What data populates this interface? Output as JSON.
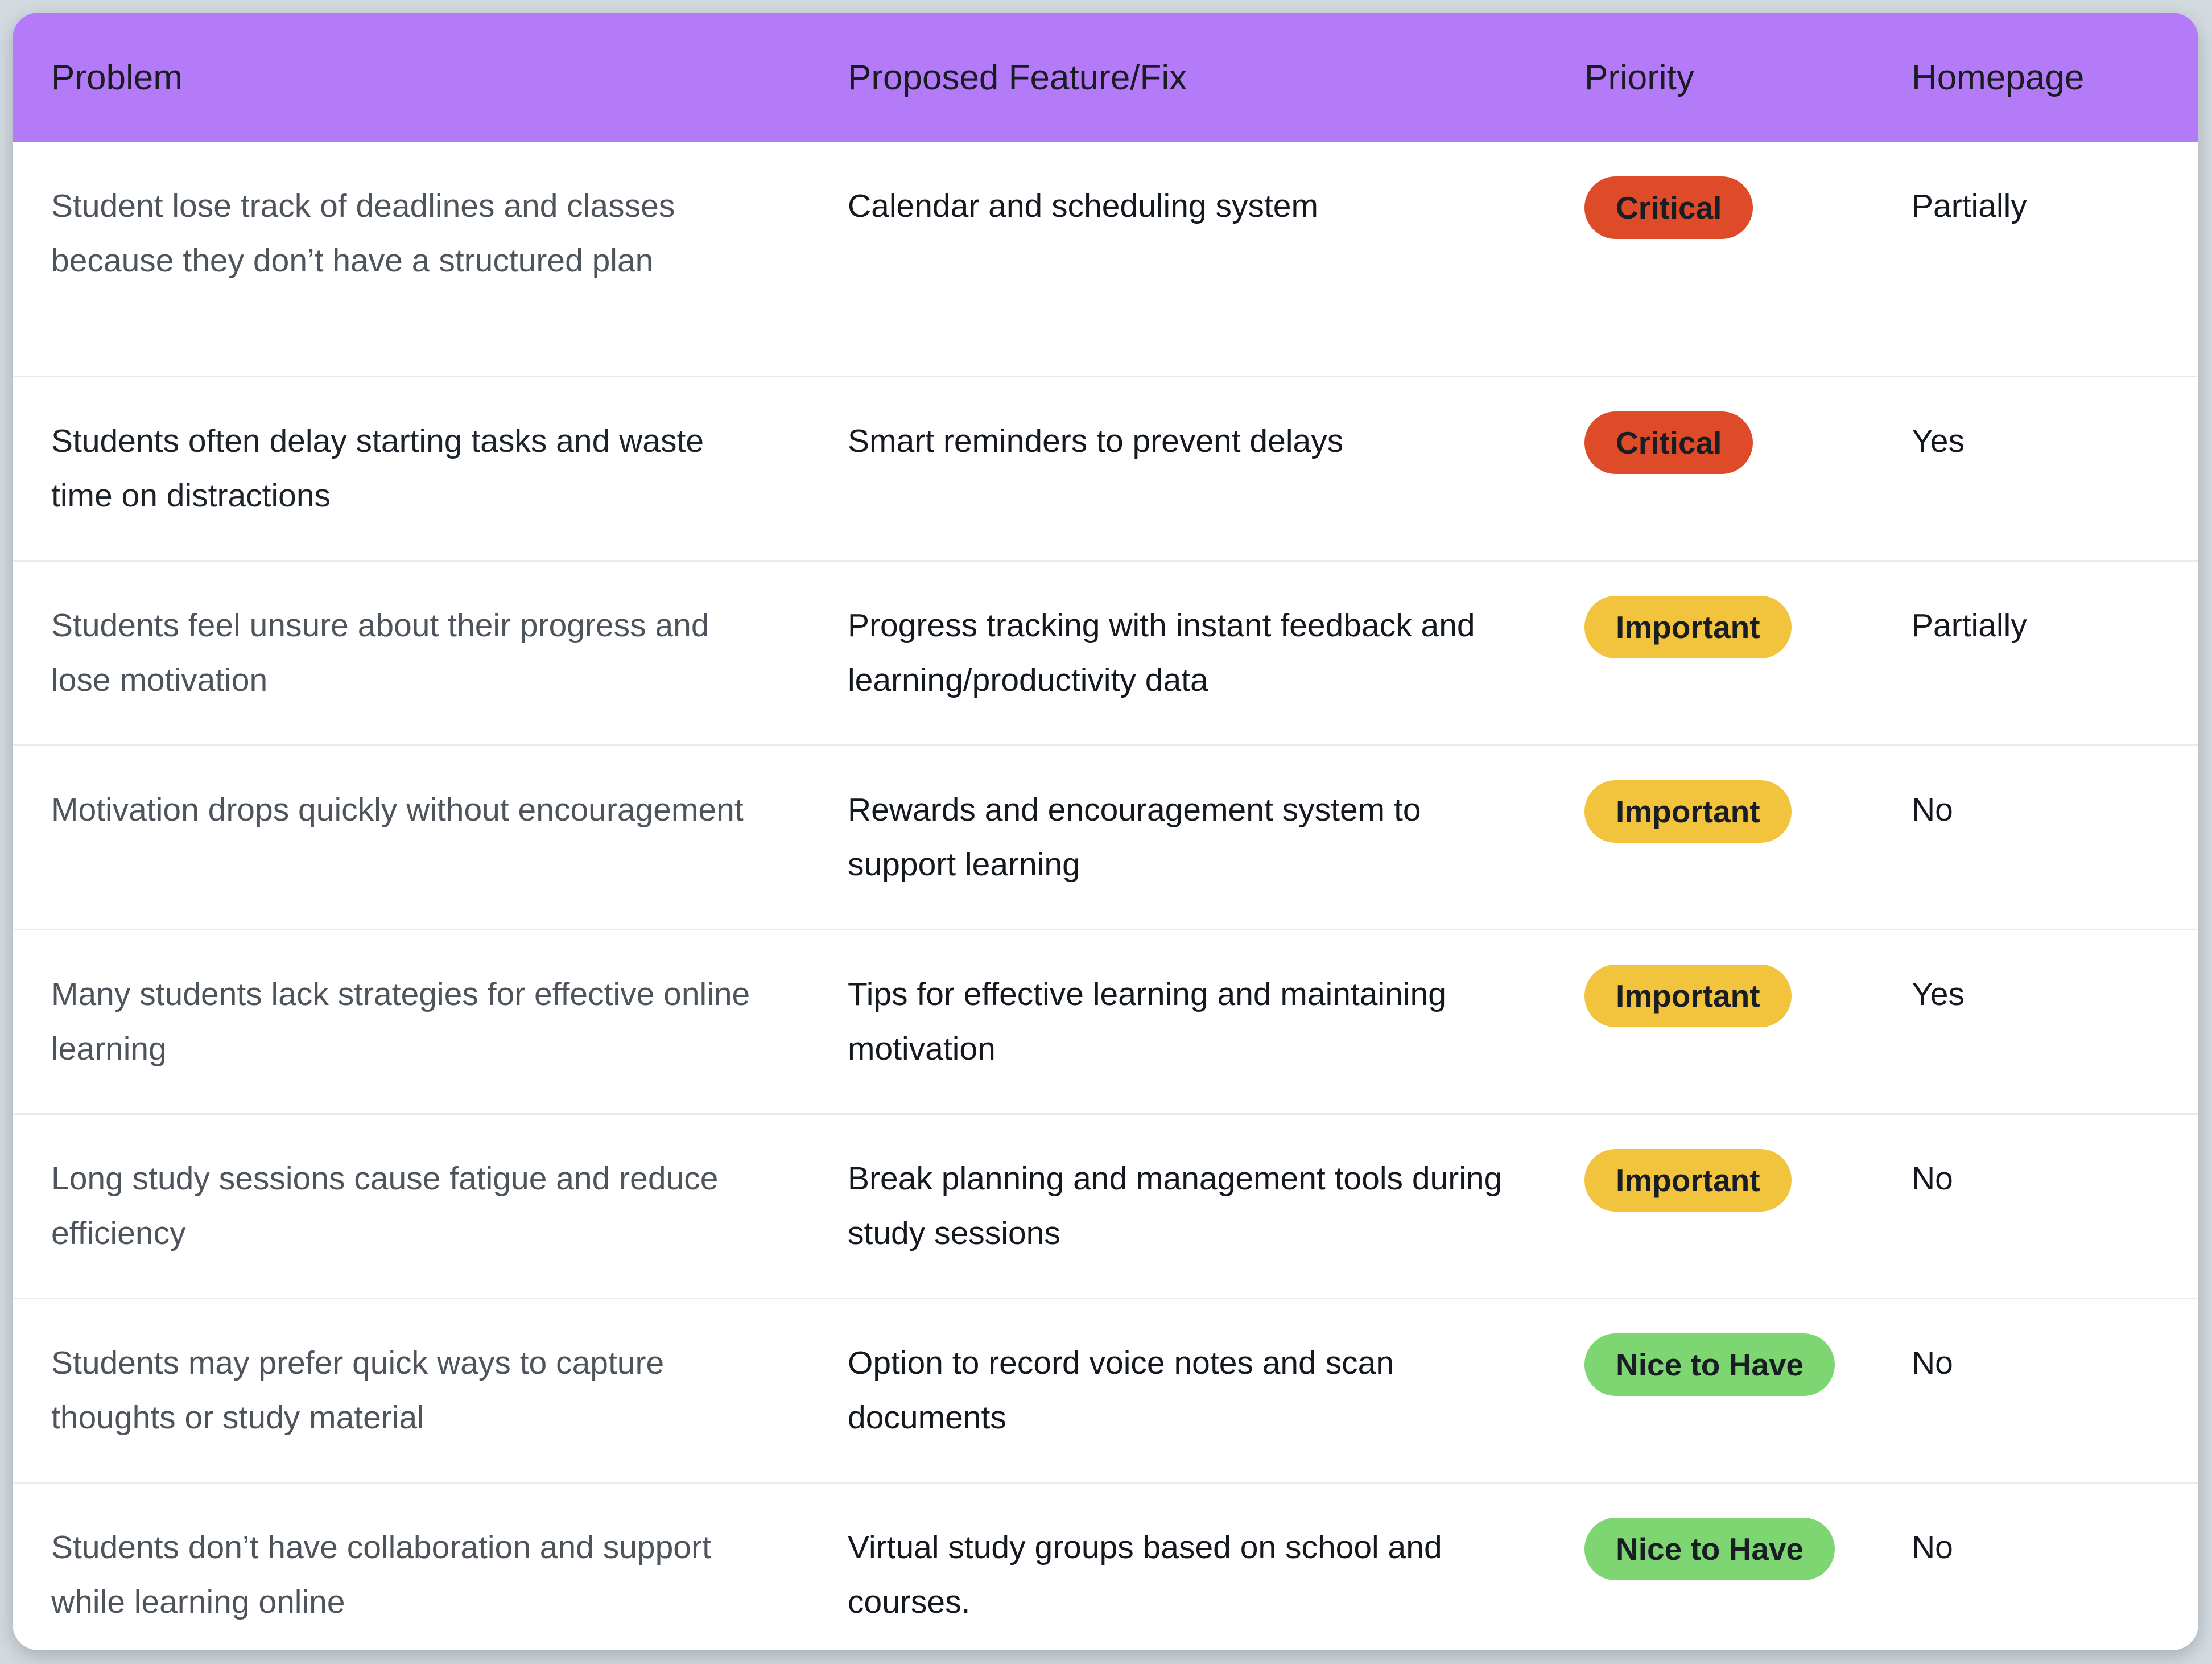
{
  "colors": {
    "page-bg": "#D4DBE0",
    "card-bg": "#FFFFFF",
    "header-bg": "#B47BF8",
    "header-text": "#1A1C22",
    "problem-text": "#4E545B",
    "problem-text-emphasis": "#1D232B",
    "body-text": "#14181F",
    "separator": "#E9EBED",
    "badge-text": "#191D24",
    "priority-critical": "#DE4B28",
    "priority-important": "#F2C33C",
    "priority-nice-to-have": "#7ED672"
  },
  "table": {
    "columns": [
      "Problem",
      "Proposed Feature/Fix",
      "Priority",
      "Homepage"
    ],
    "rows": [
      {
        "problem": "Student lose track of deadlines and classes because they don’t have a structured plan",
        "feature": "Calendar and scheduling system",
        "priority": "Critical",
        "priority_level": "critical",
        "homepage": "Partially"
      },
      {
        "problem": "Students often delay starting tasks and waste time on distractions",
        "feature": "Smart reminders to prevent delays",
        "priority": "Critical",
        "priority_level": "critical",
        "homepage": "Yes"
      },
      {
        "problem": "Students feel unsure about their progress and lose motivation",
        "feature": "Progress tracking with instant feedback and learning/productivity data",
        "priority": "Important",
        "priority_level": "important",
        "homepage": "Partially"
      },
      {
        "problem": "Motivation drops quickly without encouragement",
        "feature": "Rewards and encouragement system to support learning",
        "priority": "Important",
        "priority_level": "important",
        "homepage": "No"
      },
      {
        "problem": "Many students lack strategies for effective online learning",
        "feature": "Tips for effective learning and maintaining motivation",
        "priority": "Important",
        "priority_level": "important",
        "homepage": "Yes"
      },
      {
        "problem": "Long study sessions cause fatigue and reduce efficiency",
        "feature": "Break planning and management tools during study sessions",
        "priority": "Important",
        "priority_level": "important",
        "homepage": "No"
      },
      {
        "problem": "Students may prefer quick ways to capture thoughts or study material",
        "feature": "Option to record voice notes and scan documents",
        "priority": "Nice to Have",
        "priority_level": "nice-to-have",
        "homepage": "No"
      },
      {
        "problem": "Students don’t have collaboration and support while learning online",
        "feature": "Virtual study groups based on school and courses.",
        "priority": "Nice to Have",
        "priority_level": "nice-to-have",
        "homepage": "No"
      }
    ]
  }
}
